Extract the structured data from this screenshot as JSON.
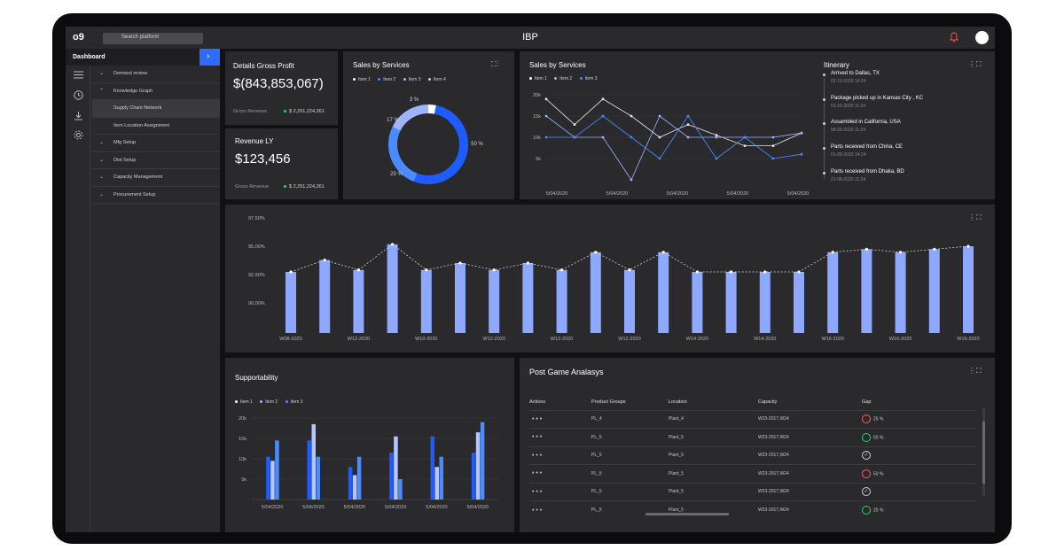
{
  "app": {
    "logo": "o9",
    "title": "IBP",
    "search_placeholder": "Search platform"
  },
  "sidebar": {
    "header": "Dashboard",
    "toggle": "›",
    "items": [
      {
        "label": "Demand review",
        "chevron": "⌄"
      },
      {
        "label": "Knowledge Graph",
        "chevron": "⌃"
      },
      {
        "label": "Supply Chain Network",
        "chevron": ""
      },
      {
        "label": "Item Location Assignment",
        "chevron": ""
      },
      {
        "label": "Mfg Setup",
        "chevron": "⌄"
      },
      {
        "label": "Dist Setup",
        "chevron": "⌄"
      },
      {
        "label": "Capacity Management",
        "chevron": "⌄"
      },
      {
        "label": "Procurement Setup",
        "chevron": "⌄"
      }
    ]
  },
  "gross_profit": {
    "title": "Details Gross Profit",
    "value": "$(843,853,067)",
    "label": "Gross Revenue",
    "sub_value": "$ 2,251,224,261"
  },
  "revenue_ly": {
    "title": "Revenue LY",
    "value": "$123,456",
    "label": "Gross Revenue",
    "sub_value": "$ 2,251,224,261"
  },
  "donut": {
    "title": "Sales by Services",
    "legend": [
      "Item 1",
      "Item 2",
      "Item 3",
      "Item 4"
    ],
    "chart_data": {
      "type": "pie",
      "labels": [
        "3 %",
        "50 %",
        "25 %",
        "17 %"
      ],
      "values": [
        3,
        50,
        25,
        17
      ]
    }
  },
  "line_panel": {
    "title": "Sales by Services",
    "legend": [
      "Item 1",
      "Item 2",
      "Item 3"
    ],
    "chart_data": {
      "type": "line",
      "y_ticks": [
        "20k",
        "15k",
        "10k",
        "5k"
      ],
      "x_ticks": [
        "5/04/2020",
        "5/04/2020",
        "5/04/2020",
        "5/04/2020",
        "5/04/2020"
      ],
      "ylim": [
        0,
        20000
      ],
      "series": [
        {
          "name": "Item 1",
          "values": [
            19000,
            13000,
            19000,
            15000,
            10000,
            13000,
            10500,
            8000,
            8000,
            11000
          ]
        },
        {
          "name": "Item 2",
          "values": [
            15000,
            10000,
            10000,
            0,
            15000,
            10000,
            10000,
            10000,
            10000,
            11000
          ]
        },
        {
          "name": "Item 3",
          "values": [
            10000,
            10000,
            15000,
            10000,
            5000,
            15000,
            5000,
            10000,
            5000,
            6000
          ]
        }
      ]
    }
  },
  "itinerary": {
    "title": "Itinerary",
    "items": [
      {
        "title": "Arrived to Dallas, TX",
        "date": "02-10-2020 14:24"
      },
      {
        "title": "Package picked up in Kansas City , KC",
        "date": "01-10-2020 11:24"
      },
      {
        "title": "Assambled in California, USA",
        "date": "08-09-2020 11:24"
      },
      {
        "title": "Parts received from China, CE",
        "date": "01-09-2020 14:24"
      },
      {
        "title": "Parts received from Dhaka, BD",
        "date": "21-08-2020 11:24"
      }
    ]
  },
  "weekly": {
    "chart_data": {
      "type": "bar",
      "y_ticks": [
        "97.50%",
        "95.00%",
        "92.90%",
        "90.00%"
      ],
      "ylim": [
        86.0,
        97.5
      ],
      "x_labels": [
        "W08-2020",
        "W12-2020",
        "W10-2020",
        "W12-2020",
        "W12-2020",
        "W12-2020",
        "W14-2020",
        "W14-2020",
        "W16-2020",
        "W16-2020",
        "W16-2020"
      ],
      "values": [
        92.2,
        93.4,
        92.4,
        95.0,
        92.4,
        93.1,
        92.4,
        93.1,
        92.4,
        94.2,
        92.4,
        94.2,
        92.2,
        92.2,
        92.2,
        92.2,
        94.2,
        94.5,
        94.2,
        94.5,
        94.8
      ]
    }
  },
  "supportability": {
    "title": "Supportability",
    "legend": [
      "Item 1",
      "Item 2",
      "Item 3"
    ],
    "chart_data": {
      "type": "bar",
      "y_ticks": [
        "20k",
        "15k",
        "10k",
        "5k"
      ],
      "ylim": [
        0,
        20000
      ],
      "categories": [
        "5/04/2020",
        "5/04/2020",
        "5/04/2020",
        "5/04/2020",
        "5/04/2020",
        "5/04/2020"
      ],
      "series": [
        {
          "name": "Item 1",
          "values": [
            10500,
            14500,
            8000,
            11500,
            15500,
            11500
          ]
        },
        {
          "name": "Item 2",
          "values": [
            9500,
            18500,
            6000,
            15500,
            8000,
            16500
          ]
        },
        {
          "name": "Item 3",
          "values": [
            14500,
            10500,
            10500,
            5000,
            10500,
            19000
          ]
        }
      ]
    }
  },
  "post_game": {
    "title": "Post Game Analasys",
    "headers": [
      "Actions",
      "Product Groups",
      "Location",
      "Capacity",
      "Gap"
    ],
    "rows": [
      {
        "actions": "• • •",
        "group": "PL_4",
        "location": "Plant_4",
        "capacity": "W23-2017,W24",
        "gap": "25 %",
        "status": "red"
      },
      {
        "actions": "• • •",
        "group": "PL_5",
        "location": "Plant_5",
        "capacity": "W23-2017,W24",
        "gap": "50 %",
        "status": "green"
      },
      {
        "actions": "• • •",
        "group": "PL_5",
        "location": "Plant_5",
        "capacity": "W23-2017,W24",
        "gap": "✓",
        "status": "check"
      },
      {
        "actions": "• • •",
        "group": "PL_5",
        "location": "Plant_5",
        "capacity": "W23-2017,W24",
        "gap": "50 %",
        "status": "red"
      },
      {
        "actions": "• • •",
        "group": "PL_5",
        "location": "Plant_5",
        "capacity": "W23-2017,W24",
        "gap": "✓",
        "status": "check"
      },
      {
        "actions": "• • •",
        "group": "PL_5",
        "location": "Plant_5",
        "capacity": "W23-2017,W24",
        "gap": "25 %",
        "status": "green"
      }
    ]
  },
  "colors": {
    "accent": "#2f6bff",
    "bar_light": "#8fa8ff",
    "series1": "#1f5cff",
    "series2": "#9fb4ff",
    "series3": "#4a8cff"
  }
}
